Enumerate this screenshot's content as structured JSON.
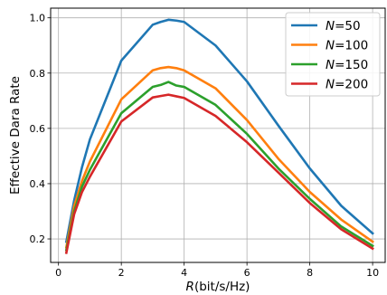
{
  "chart_data": {
    "type": "line",
    "xlabel_italic": "R",
    "xlabel_rest": "(bit/s/Hz)",
    "ylabel": "Effective Dara Rate",
    "xlim": [
      -0.25,
      10.4
    ],
    "ylim": [
      0.115,
      1.035
    ],
    "xticks": [
      0,
      2,
      4,
      6,
      8,
      10
    ],
    "yticks": [
      0.2,
      0.4,
      0.6,
      0.8,
      1.0
    ],
    "ytick_labels": [
      "0.2",
      "0.4",
      "0.6",
      "0.8",
      "1.0"
    ],
    "grid": true,
    "legend_position": "top-right",
    "x": [
      0.25,
      0.5,
      0.75,
      1,
      2,
      3,
      3.25,
      3.5,
      3.75,
      4,
      5,
      6,
      7,
      8,
      9,
      10
    ],
    "series": [
      {
        "legend_italic": "N",
        "legend_rest": "=50",
        "color": "#1f77b4",
        "values": [
          0.19,
          0.34,
          0.46,
          0.56,
          0.845,
          0.975,
          0.985,
          0.993,
          0.99,
          0.985,
          0.9,
          0.77,
          0.61,
          0.455,
          0.32,
          0.22
        ]
      },
      {
        "legend_italic": "N",
        "legend_rest": "=100",
        "color": "#ff7f0e",
        "values": [
          0.17,
          0.32,
          0.41,
          0.48,
          0.705,
          0.81,
          0.818,
          0.822,
          0.818,
          0.81,
          0.745,
          0.63,
          0.49,
          0.37,
          0.27,
          0.19
        ]
      },
      {
        "legend_italic": "N",
        "legend_rest": "=150",
        "color": "#2ca02c",
        "values": [
          0.16,
          0.3,
          0.39,
          0.45,
          0.655,
          0.75,
          0.757,
          0.768,
          0.755,
          0.75,
          0.685,
          0.58,
          0.455,
          0.345,
          0.245,
          0.175
        ]
      },
      {
        "legend_italic": "N",
        "legend_rest": "=200",
        "color": "#d62728",
        "values": [
          0.15,
          0.29,
          0.37,
          0.425,
          0.625,
          0.712,
          0.717,
          0.722,
          0.716,
          0.71,
          0.645,
          0.55,
          0.44,
          0.33,
          0.235,
          0.165
        ]
      }
    ]
  }
}
